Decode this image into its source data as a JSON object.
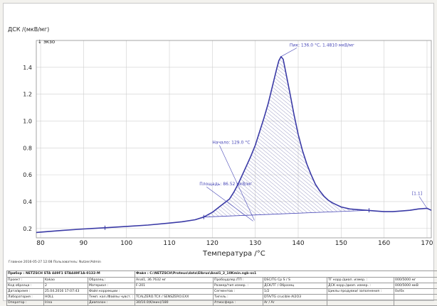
{
  "colors": {
    "curve": "#3a3aa6",
    "annotation": "#4a4ab8",
    "grid": "#cfcfcf",
    "hatch": "#5a5aa0"
  },
  "chart_data": {
    "type": "line",
    "title": "",
    "ylabel": "ДСК /(мкВ/мг)",
    "exo_label": "↓ экзо",
    "xlabel": "Температура /°C",
    "xlim": [
      79,
      171
    ],
    "ylim": [
      0.13,
      1.6
    ],
    "xticks": [
      80,
      90,
      100,
      110,
      120,
      130,
      140,
      150,
      160,
      170
    ],
    "yticks": [
      0.2,
      0.4,
      0.6,
      0.8,
      1.0,
      1.2,
      1.4
    ],
    "grid": true,
    "series": [
      {
        "x": [
          79,
          85,
          90,
          95,
          100,
          105,
          110,
          113,
          116,
          118,
          120,
          122,
          124,
          125,
          126,
          127,
          128,
          129,
          130,
          131,
          132,
          133,
          134,
          135,
          135.5,
          136,
          136.5,
          137,
          138,
          139,
          140,
          141,
          142,
          143,
          144,
          145,
          146,
          147,
          148,
          149,
          150,
          152,
          154,
          156,
          158,
          160,
          162,
          164,
          166,
          168,
          170,
          171
        ],
        "values": [
          0.17,
          0.185,
          0.196,
          0.205,
          0.215,
          0.225,
          0.24,
          0.25,
          0.265,
          0.285,
          0.32,
          0.37,
          0.42,
          0.47,
          0.53,
          0.6,
          0.67,
          0.74,
          0.82,
          0.92,
          1.02,
          1.13,
          1.26,
          1.39,
          1.45,
          1.48,
          1.46,
          1.38,
          1.22,
          1.05,
          0.9,
          0.78,
          0.68,
          0.6,
          0.53,
          0.48,
          0.44,
          0.41,
          0.39,
          0.375,
          0.36,
          0.345,
          0.34,
          0.335,
          0.33,
          0.325,
          0.325,
          0.33,
          0.335,
          0.345,
          0.35,
          0.335
        ]
      }
    ],
    "markers": [
      {
        "x": 95,
        "y": 0.205
      },
      {
        "x": 118,
        "y": 0.285
      },
      {
        "x": 156.5,
        "y": 0.335
      }
    ],
    "baseline": {
      "x": [
        118,
        156.5
      ],
      "y": [
        0.285,
        0.335
      ]
    },
    "annotations": [
      {
        "text": "Пик: 136.0 °C, 1.4810 мкВ/мг",
        "x": 136,
        "y": 1.48,
        "label_x": 138,
        "label_y": 1.555
      },
      {
        "text": "Начало: 129.0 °C",
        "x": 129.8,
        "y": 0.26,
        "label_x": 120,
        "label_y": 0.83
      },
      {
        "text": "Площадь: 86.52 мкВ/мг",
        "x": 129.5,
        "y": 0.255,
        "label_x": 117,
        "label_y": 0.52
      },
      {
        "text": "[1.1]",
        "x": 170,
        "y": 0.35,
        "label_x": 166.5,
        "label_y": 0.45
      }
    ]
  },
  "footer_note": "Главное    2016-05-27 12:08    Пользователь: Nutzer/Admin",
  "info": {
    "header": [
      "Прибор : NETZSCH STA 449F1 STA449F1A-0132-M",
      "Файл : C:\\NETZSCH\\Proteus\\data\\Elbrus\\Anal1_2_10Kmin.ngb-ss1"
    ],
    "rows": [
      [
        "Проект :",
        "Kakao",
        "Образец :",
        "Anal1, 36.7632 мг",
        "Пробоудлер./ТП :",
        "DSC/TG Cp S / S",
        "ТГ корр./диап. измер. :",
        "000/5000 мг"
      ],
      [
        "Код образца :",
        "2",
        "Материал :",
        "F-201",
        "Размер/тип измер. :",
        "ДСК/ТГ / Образец",
        "ДСК корр./диап. измер. :",
        "000/5000 мкВ"
      ],
      [
        "Дата/время :",
        "25.04.2016 17:07:43",
        "Файл коррекции :",
        "",
        "Сегментов :",
        "1/2",
        "Циклы продувки/ заполнения :",
        "0x/0x"
      ],
      [
        "Лаборатория :",
        "HOLL",
        "Темп. кал./Файлы чувст. :",
        "TCALZERO.TCX / SENSZERO.EXX",
        "Тигель :",
        "DTA/TG crucible Al2O3",
        "",
        ""
      ],
      [
        "Оператор :",
        "Irina",
        "Диапазон :",
        "30/10.0(K/мин)/180",
        "Атмосфера :",
        "Ar / Ar",
        "",
        ""
      ]
    ]
  }
}
